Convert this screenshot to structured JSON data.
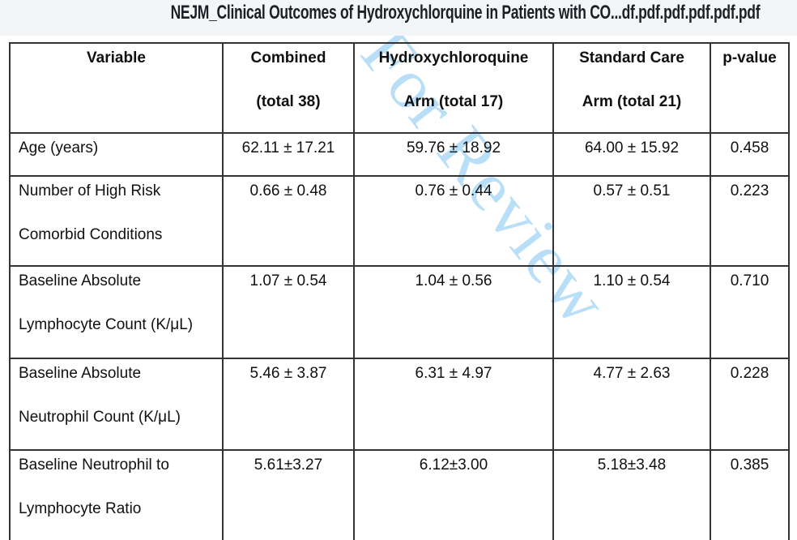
{
  "page": {
    "title": "NEJM_Clinical Outcomes of Hydroxychlorquine in Patients with CO...df.pdf.pdf.pdf.pdf.pdf",
    "title_color": "#1c2026",
    "topbar_background": "#f4f5f7",
    "background": "#ffffff"
  },
  "watermark": {
    "text": "For Review",
    "color": "#b9dff8"
  },
  "table": {
    "border_color": "#333333",
    "header": {
      "variable": [
        "Variable"
      ],
      "combined": [
        "Combined",
        "(total 38)"
      ],
      "hydroxychloroquine": [
        "Hydroxychloroquine",
        "Arm (total 17)"
      ],
      "standard_care": [
        "Standard Care",
        "Arm (total 21)"
      ],
      "p_value": [
        "p-value"
      ]
    },
    "rows": [
      {
        "variable": [
          "Age (years)"
        ],
        "combined": [
          "62.11 ± 17.21"
        ],
        "hydroxychloroquine": [
          "59.76 ± 18.92"
        ],
        "standard_care": [
          "64.00 ± 15.92"
        ],
        "p_value": [
          "0.458"
        ]
      },
      {
        "variable": [
          "Number of High Risk",
          "Comorbid Conditions"
        ],
        "combined": [
          "0.66 ± 0.48"
        ],
        "hydroxychloroquine": [
          "0.76 ± 0.44"
        ],
        "standard_care": [
          "0.57 ± 0.51"
        ],
        "p_value": [
          "0.223"
        ]
      },
      {
        "variable": [
          "Baseline Absolute",
          "Lymphocyte Count (K/μL)"
        ],
        "combined": [
          "1.07 ± 0.54"
        ],
        "hydroxychloroquine": [
          "1.04 ± 0.56"
        ],
        "standard_care": [
          "1.10 ± 0.54"
        ],
        "p_value": [
          "0.710"
        ]
      },
      {
        "variable": [
          "Baseline Absolute",
          "Neutrophil Count (K/μL)"
        ],
        "combined": [
          "5.46 ± 3.87"
        ],
        "hydroxychloroquine": [
          "6.31 ± 4.97"
        ],
        "standard_care": [
          "4.77 ± 2.63"
        ],
        "p_value": [
          "0.228"
        ]
      },
      {
        "variable": [
          "Baseline Neutrophil to",
          "Lymphocyte Ratio"
        ],
        "combined": [
          "5.61±3.27"
        ],
        "hydroxychloroquine": [
          "6.12±3.00"
        ],
        "standard_care": [
          "5.18±3.48"
        ],
        "p_value": [
          "0.385"
        ]
      }
    ]
  }
}
